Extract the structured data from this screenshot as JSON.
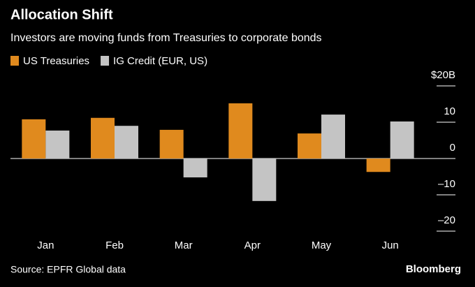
{
  "chart_data": {
    "type": "bar",
    "title": "Allocation Shift",
    "subtitle": "Investors are moving funds from Treasuries to corporate bonds",
    "categories": [
      "Jan",
      "Feb",
      "Mar",
      "Apr",
      "May",
      "Jun"
    ],
    "series": [
      {
        "name": "US Treasuries",
        "color": "#e08a1e",
        "values": [
          10.8,
          11.2,
          7.9,
          15.2,
          6.9,
          -3.7
        ]
      },
      {
        "name": "IG Credit (EUR, US)",
        "color": "#c4c4c4",
        "values": [
          7.7,
          9.0,
          -5.2,
          -11.7,
          12.1,
          10.2
        ]
      }
    ],
    "ylim": [
      -20,
      20
    ],
    "yticks": [
      {
        "value": 20,
        "label": "$20B"
      },
      10,
      0,
      {
        "value": -10,
        "label": "–10"
      },
      {
        "value": -20,
        "label": "–20"
      }
    ],
    "source": "Source: EPFR Global data",
    "brand": "Bloomberg"
  }
}
